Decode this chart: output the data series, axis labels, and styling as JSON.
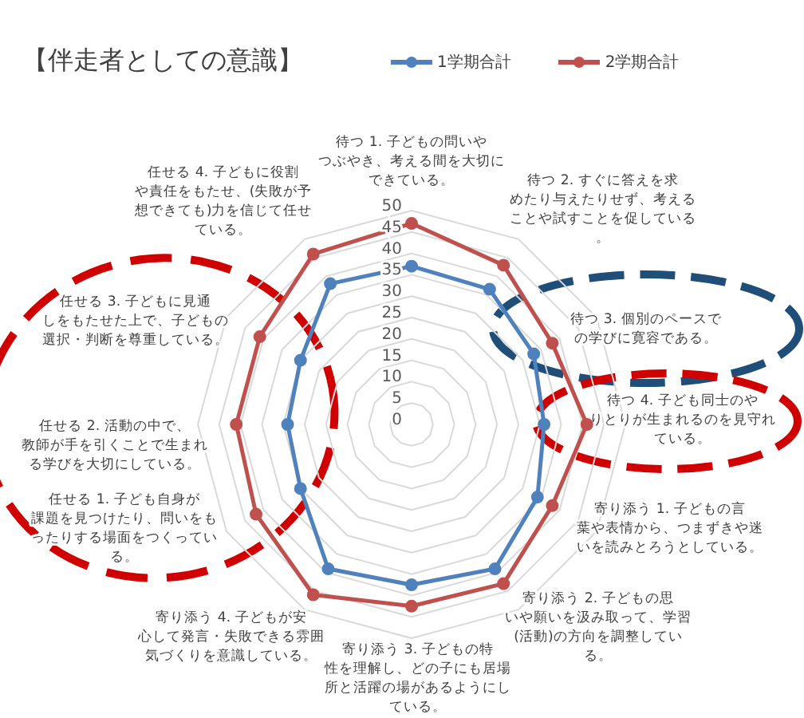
{
  "chart_data": {
    "type": "radar",
    "title": "【伴走者としての意識】",
    "categories": [
      "待つ 1. 子どもの問いやつぶやき、考える間を大切にできている。",
      "待つ 2. すぐに答えを求めたり与えたりせず、考えることや試すことを促している。",
      "待つ 3. 個別のペースでの学びに寛容である。",
      "待つ 4. 子ども同士のやりとりが生まれるのを見守れている。",
      "寄り添う 1. 子どもの言葉や表情から、つまずきや迷いを読みとろうとしている。",
      "寄り添う 2. 子どもの思いや願いを汲み取って、学習(活動)の方向を調整している。",
      "寄り添う 3. 子どもの特性を理解し、どの子にも居場所と活躍の場があるようにしている。",
      "寄り添う 4. 子どもが安心して発言・失敗できる雰囲気づくりを意識している。",
      "任せる 1. 子ども自身が課題を見つけたり、問いをもったりする場面をつくっている。",
      "任せる 2. 活動の中で、教師が手を引くことで生まれる学びを大切にしている。",
      "任せる 3. 子どもに見通しをもたせた上で、子どもの選択・判断を尊重している。",
      "任せる 4. 子どもに役割や責任をもたせ、(失敗が予想できても)力を信じて任せている。"
    ],
    "series": [
      {
        "name": "1学期合計",
        "color": "#4f81bd",
        "values": [
          37,
          36.5,
          33,
          31,
          34,
          39,
          37.5,
          39,
          30,
          29,
          30,
          38
        ]
      },
      {
        "name": "2学期合計",
        "color": "#c0504d",
        "values": [
          47,
          43,
          38,
          41,
          38,
          43,
          42.5,
          46,
          42,
          41,
          41,
          46
        ]
      }
    ],
    "ylim": [
      0,
      50
    ],
    "yticks": [
      0,
      5,
      10,
      15,
      20,
      25,
      30,
      35,
      40,
      45,
      50
    ],
    "grid": true,
    "legend": "top",
    "marker": "circle"
  }
}
